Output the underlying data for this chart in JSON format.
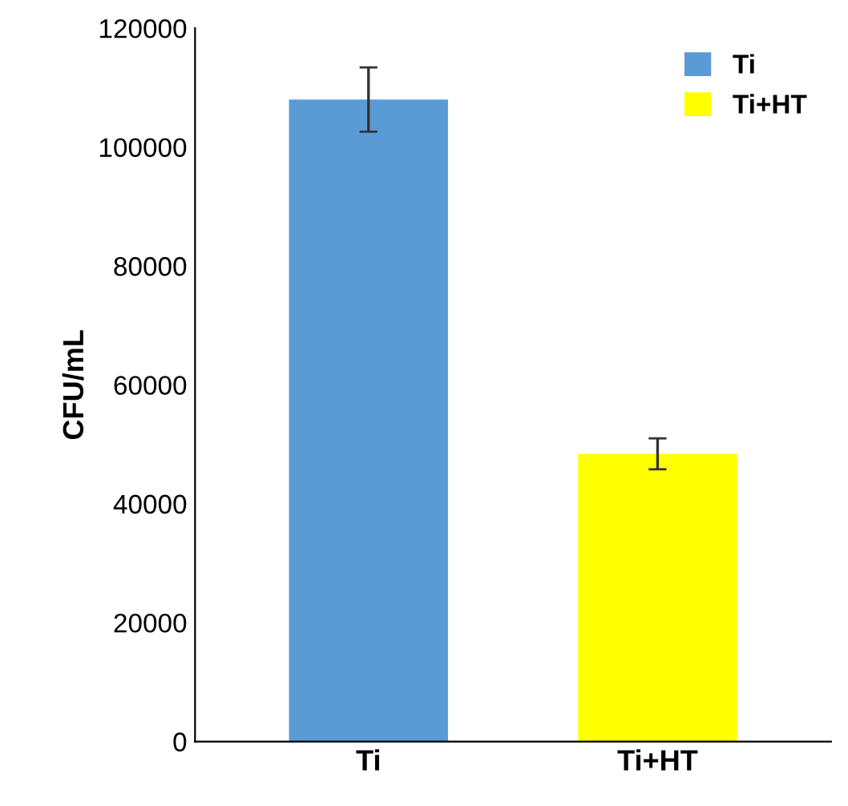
{
  "chart_data": {
    "type": "bar",
    "ylabel": "CFU/mL",
    "categories": [
      "Ti",
      "Ti+HT"
    ],
    "series": [
      {
        "name": "Ti",
        "color": "#5b9bd5",
        "values": [
          108000,
          null
        ],
        "errors": [
          5400,
          null
        ]
      },
      {
        "name": "Ti+HT",
        "color": "#ffff00",
        "values": [
          null,
          48400
        ],
        "errors": [
          null,
          2600
        ]
      }
    ],
    "ylim": [
      0,
      120000
    ],
    "yticks": [
      0,
      20000,
      40000,
      60000,
      80000,
      100000,
      120000
    ],
    "grid": false,
    "legend": "top right"
  }
}
